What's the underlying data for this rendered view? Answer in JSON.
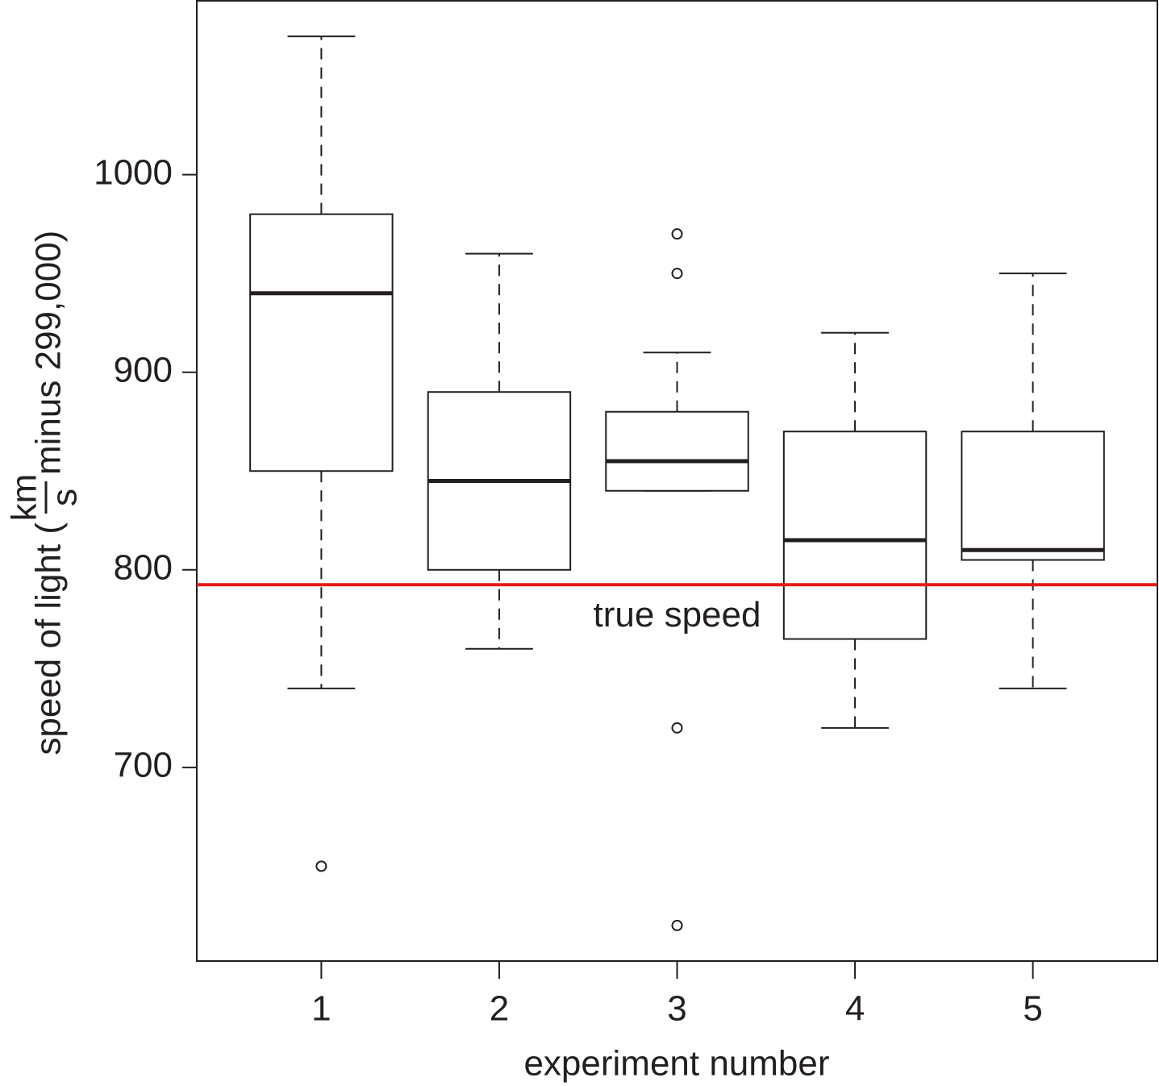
{
  "chart_data": {
    "type": "box",
    "x_label": "experiment number",
    "y_label": {
      "prefix": "speed of light (",
      "numerator": "km",
      "denominator": "s",
      "suffix": "minus 299,000)"
    },
    "categories": [
      "1",
      "2",
      "3",
      "4",
      "5"
    ],
    "xlim": [
      0.3,
      5.7
    ],
    "ylim": [
      602,
      1088
    ],
    "yticks": [
      700,
      800,
      900,
      1000
    ],
    "boxes": [
      {
        "whislo": 740,
        "q1": 850,
        "med": 940,
        "q3": 980,
        "whishi": 1070,
        "fliers": [
          650
        ]
      },
      {
        "whislo": 760,
        "q1": 800,
        "med": 845,
        "q3": 890,
        "whishi": 960,
        "fliers": []
      },
      {
        "whislo": 840,
        "q1": 840,
        "med": 855,
        "q3": 880,
        "whishi": 910,
        "fliers": [
          970,
          950,
          720,
          620
        ]
      },
      {
        "whislo": 720,
        "q1": 765,
        "med": 815,
        "q3": 870,
        "whishi": 920,
        "fliers": []
      },
      {
        "whislo": 740,
        "q1": 805,
        "med": 810,
        "q3": 870,
        "whishi": 950,
        "fliers": []
      }
    ],
    "hline": {
      "value": 792.458,
      "label": "true speed",
      "color": "#e31a1c"
    }
  }
}
